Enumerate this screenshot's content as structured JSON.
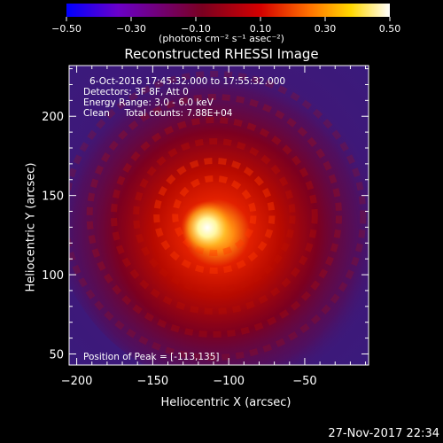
{
  "chart_data": {
    "type": "heatmap",
    "title": "Reconstructed RHESSI Image",
    "xlabel": "Heliocentric X (arcsec)",
    "ylabel": "Heliocentric Y (arcsec)",
    "xlim": [
      -205,
      -8
    ],
    "ylim": [
      43,
      232
    ],
    "xticks": [
      -200,
      -150,
      -100,
      -50
    ],
    "yticks": [
      50,
      100,
      150,
      200
    ],
    "peak": {
      "x": -113,
      "y": 135
    },
    "colorbar": {
      "min": -0.5,
      "max": 0.5,
      "tick_labels": [
        "-0.50",
        "-0.30",
        "-0.10",
        "0.10",
        "0.30",
        "0.50"
      ],
      "unit_label": "(photons cm⁻² s⁻¹ asec⁻²)",
      "colors": [
        "#0000ff",
        "#6a00c8",
        "#7a0020",
        "#d40000",
        "#ff7000",
        "#ffd800",
        "#ffffff"
      ]
    },
    "annotations": [
      "6-Oct-2016 17:45:32.000 to 17:55:32.000",
      "Detectors: 3F 8F, Att 0",
      "Energy Range: 3.0 - 6.0 keV",
      "Clean     Total counts: 7.88E+04",
      "Position of Peak = [-113,135]"
    ],
    "timestamp": "27-Nov-2017 22:34"
  }
}
